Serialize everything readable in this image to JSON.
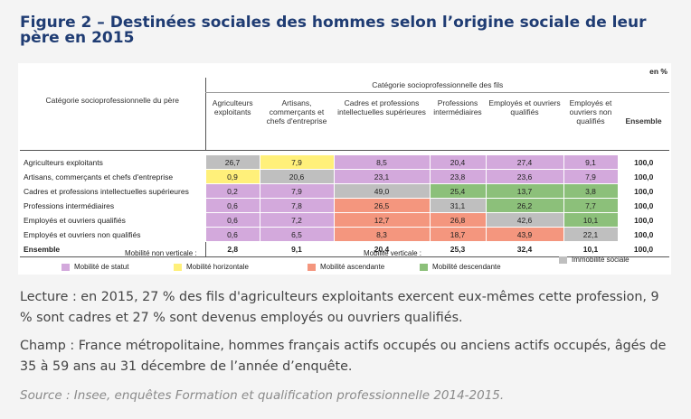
{
  "title": "Figure 2 – Destinées sociales des hommes selon l’origine sociale de leur père en 2015",
  "table": {
    "unit": "en %",
    "row_header": "Catégorie socioprofessionnelle du père",
    "column_group": "Catégorie socioprofessionnelle des fils",
    "columns": [
      "Agriculteurs exploitants",
      "Artisans, commerçants et chefs d'entreprise",
      "Cadres et professions intellectuelles supérieures",
      "Professions intermédiaires",
      "Employés et ouvriers qualifiés",
      "Employés et ouvriers non qualifiés",
      "Ensemble"
    ],
    "rows": [
      {
        "label": "Agriculteurs exploitants",
        "cells": [
          "26,7",
          "7,9",
          "8,5",
          "20,4",
          "27,4",
          "9,1",
          "100,0"
        ],
        "colors": [
          "#bfbfbf",
          "#fff07a",
          "#d3a9dc",
          "#d3a9dc",
          "#d3a9dc",
          "#d3a9dc",
          "#ffffff"
        ]
      },
      {
        "label": "Artisans, commerçants et chefs d'entreprise",
        "cells": [
          "0,9",
          "20,6",
          "23,1",
          "23,8",
          "23,6",
          "7,9",
          "100,0"
        ],
        "colors": [
          "#fff07a",
          "#bfbfbf",
          "#d3a9dc",
          "#d3a9dc",
          "#d3a9dc",
          "#d3a9dc",
          "#ffffff"
        ]
      },
      {
        "label": "Cadres et professions intellectuelles supérieures",
        "cells": [
          "0,2",
          "7,9",
          "49,0",
          "25,4",
          "13,7",
          "3,8",
          "100,0"
        ],
        "colors": [
          "#d3a9dc",
          "#d3a9dc",
          "#bfbfbf",
          "#8cc07a",
          "#8cc07a",
          "#8cc07a",
          "#ffffff"
        ]
      },
      {
        "label": "Professions intermédiaires",
        "cells": [
          "0,6",
          "7,8",
          "26,5",
          "31,1",
          "26,2",
          "7,7",
          "100,0"
        ],
        "colors": [
          "#d3a9dc",
          "#d3a9dc",
          "#f4967e",
          "#bfbfbf",
          "#8cc07a",
          "#8cc07a",
          "#ffffff"
        ]
      },
      {
        "label": "Employés et ouvriers qualifiés",
        "cells": [
          "0,6",
          "7,2",
          "12,7",
          "26,8",
          "42,6",
          "10,1",
          "100,0"
        ],
        "colors": [
          "#d3a9dc",
          "#d3a9dc",
          "#f4967e",
          "#f4967e",
          "#bfbfbf",
          "#8cc07a",
          "#ffffff"
        ]
      },
      {
        "label": "Employés et ouvriers non qualifiés",
        "cells": [
          "0,6",
          "6,5",
          "8,3",
          "18,7",
          "43,9",
          "22,1",
          "100,0"
        ],
        "colors": [
          "#d3a9dc",
          "#d3a9dc",
          "#f4967e",
          "#f4967e",
          "#f4967e",
          "#bfbfbf",
          "#ffffff"
        ]
      }
    ],
    "total": {
      "label": "Ensemble",
      "cells": [
        "2,8",
        "9,1",
        "20,4",
        "25,3",
        "32,4",
        "10,1",
        "100,0"
      ]
    },
    "legend": {
      "non_vertical": "Mobilité non verticale :",
      "vertical": "Mobilité verticale :",
      "items": [
        {
          "label": "Mobilité de statut",
          "color": "#d3a9dc"
        },
        {
          "label": "Mobilité horizontale",
          "color": "#fff07a"
        },
        {
          "label": "Mobilité ascendante",
          "color": "#f4967e"
        },
        {
          "label": "Mobilité descendante",
          "color": "#8cc07a"
        },
        {
          "label": "Immobilité sociale",
          "color": "#bfbfbf"
        }
      ]
    }
  },
  "notes": {
    "lecture": "Lecture : en 2015, 27 % des fils d'agriculteurs exploitants exercent eux-mêmes cette profession, 9 % sont cadres et 27 % sont devenus employés ou ouvriers qualifiés.",
    "champ": "Champ : France métropolitaine, hommes français actifs occupés ou anciens actifs occupés, âgés de 35 à 59 ans au 31 décembre de l’année d’enquête.",
    "source": "Source : Insee, enquêtes Formation et qualification professionnelle 2014-2015."
  }
}
